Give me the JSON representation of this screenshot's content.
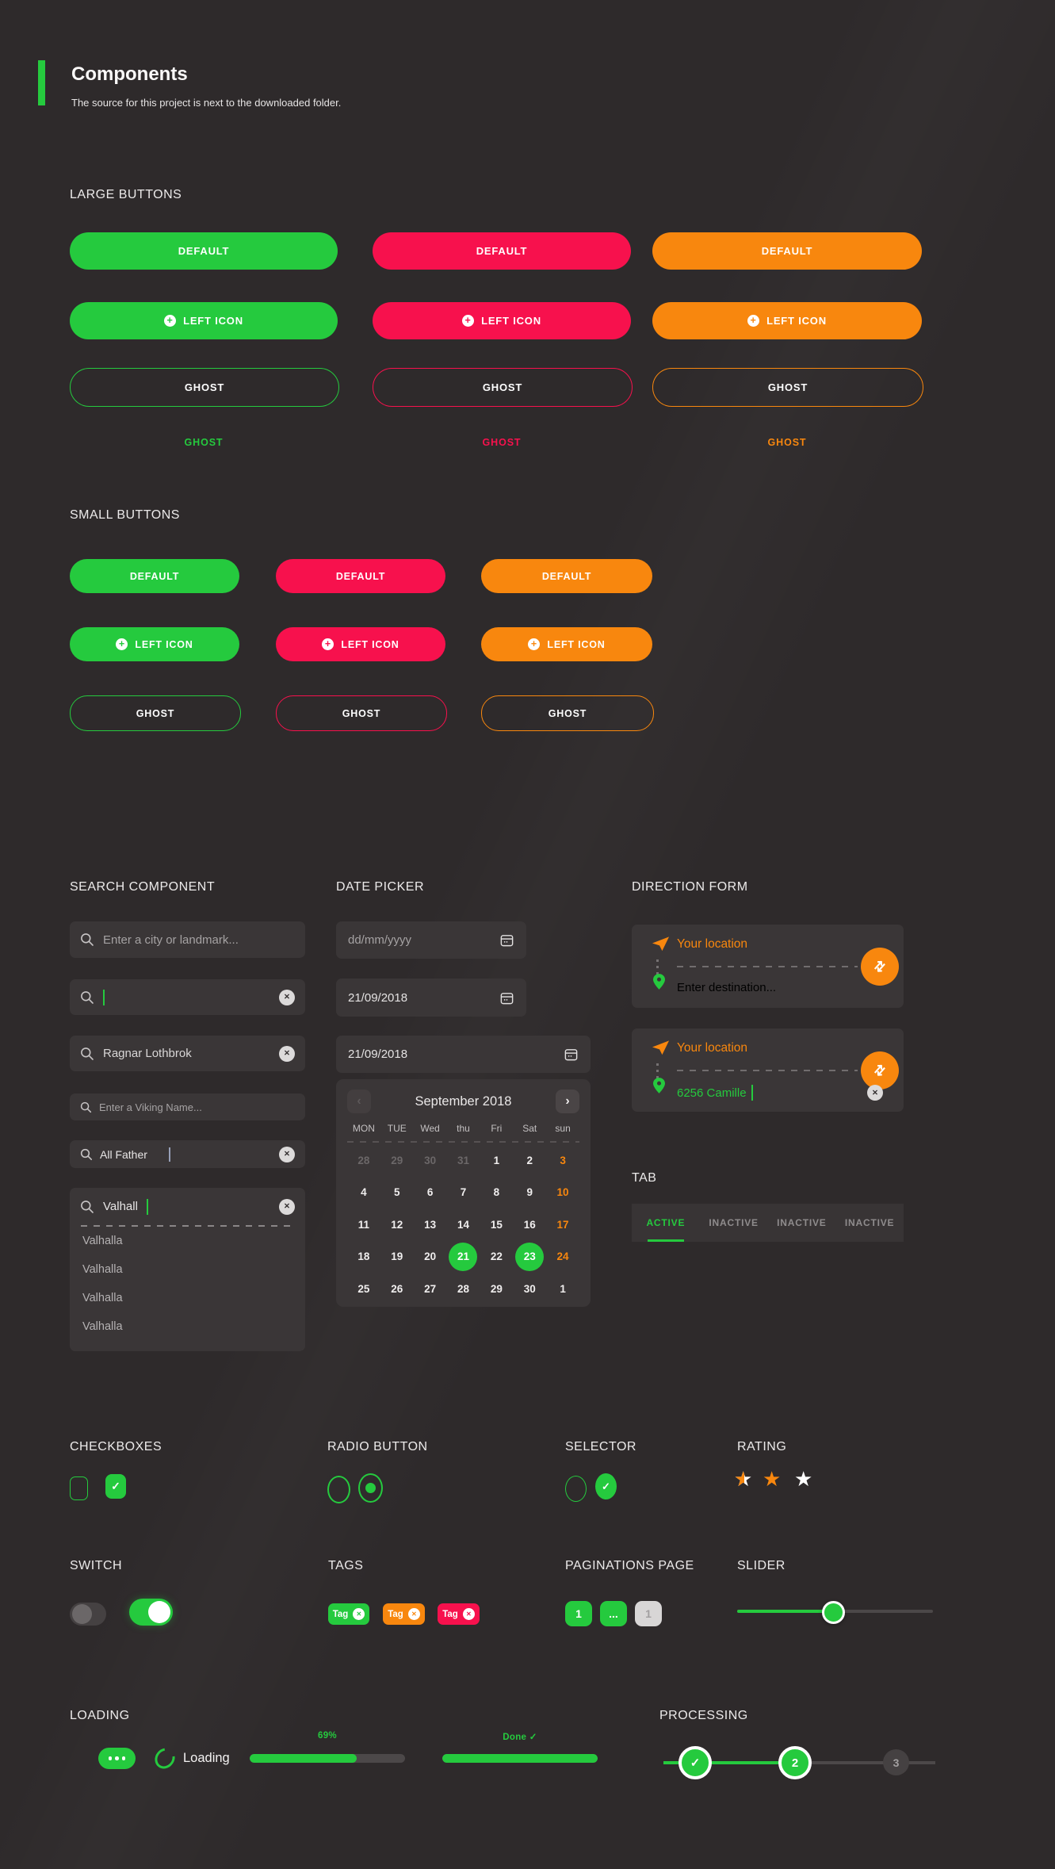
{
  "colors": {
    "green": "#25ca3e",
    "pink": "#f7114d",
    "orange": "#f8870e",
    "background": "#2e2a2b",
    "panel": "#3a3637"
  },
  "header": {
    "title": "Components",
    "subtitle": "The source for this project is next to the downloaded folder."
  },
  "large_buttons": {
    "heading": "LARGE BUTTONS",
    "plus_glyph": "+",
    "variants": [
      {
        "name": "green",
        "default_label": "DEFAULT",
        "left_icon_label": "LEFT ICON",
        "ghost_label": "GHOST",
        "link_label": "GHOST"
      },
      {
        "name": "pink",
        "default_label": "DEFAULT",
        "left_icon_label": "LEFT ICON",
        "ghost_label": "GHOST",
        "link_label": "GHOST"
      },
      {
        "name": "orange",
        "default_label": "DEFAULT",
        "left_icon_label": "LEFT ICON",
        "ghost_label": "GHOST",
        "link_label": "GHOST"
      }
    ]
  },
  "small_buttons": {
    "heading": "SMALL BUTTONS",
    "plus_glyph": "+",
    "variants": [
      {
        "name": "green",
        "default_label": "DEFAULT",
        "left_icon_label": "LEFT ICON",
        "ghost_label": "GHOST"
      },
      {
        "name": "pink",
        "default_label": "DEFAULT",
        "left_icon_label": "LEFT ICON",
        "ghost_label": "GHOST"
      },
      {
        "name": "orange",
        "default_label": "DEFAULT",
        "left_icon_label": "LEFT ICON",
        "ghost_label": "GHOST"
      }
    ]
  },
  "search": {
    "heading": "SEARCH COMPONENT",
    "input1_placeholder": "Enter a city or landmark...",
    "input3_value": "Ragnar Lothbrok",
    "input4_placeholder": "Enter a Viking Name...",
    "input5_value": "All Father",
    "autocomplete_value": "Valhall",
    "suggestions": [
      "Valhalla",
      "Valhalla",
      "Valhalla",
      "Valhalla"
    ],
    "clear_glyph": "✕"
  },
  "date_picker": {
    "heading": "DATE PICKER",
    "input1_placeholder": "dd/mm/yyyy",
    "input2_value": "21/09/2018",
    "input3_value": "21/09/2018",
    "calendar": {
      "month_label": "September 2018",
      "prev_glyph": "‹",
      "next_glyph": "›",
      "day_headers": [
        "MON",
        "TUE",
        "Wed",
        "thu",
        "Fri",
        "Sat",
        "sun"
      ],
      "days": [
        {
          "d": "28",
          "state": "muted"
        },
        {
          "d": "29",
          "state": "muted"
        },
        {
          "d": "30",
          "state": "muted"
        },
        {
          "d": "31",
          "state": "muted"
        },
        {
          "d": "1",
          "state": "normal"
        },
        {
          "d": "2",
          "state": "normal"
        },
        {
          "d": "3",
          "state": "sunday"
        },
        {
          "d": "4",
          "state": "normal"
        },
        {
          "d": "5",
          "state": "normal"
        },
        {
          "d": "6",
          "state": "normal"
        },
        {
          "d": "7",
          "state": "normal"
        },
        {
          "d": "8",
          "state": "normal"
        },
        {
          "d": "9",
          "state": "normal"
        },
        {
          "d": "10",
          "state": "sunday"
        },
        {
          "d": "11",
          "state": "normal"
        },
        {
          "d": "12",
          "state": "normal"
        },
        {
          "d": "13",
          "state": "normal"
        },
        {
          "d": "14",
          "state": "normal"
        },
        {
          "d": "15",
          "state": "normal"
        },
        {
          "d": "16",
          "state": "normal"
        },
        {
          "d": "17",
          "state": "sunday"
        },
        {
          "d": "18",
          "state": "normal"
        },
        {
          "d": "19",
          "state": "normal"
        },
        {
          "d": "20",
          "state": "normal"
        },
        {
          "d": "21",
          "state": "selected"
        },
        {
          "d": "22",
          "state": "normal"
        },
        {
          "d": "23",
          "state": "selected"
        },
        {
          "d": "24",
          "state": "sunday"
        },
        {
          "d": "25",
          "state": "normal"
        },
        {
          "d": "26",
          "state": "normal"
        },
        {
          "d": "27",
          "state": "normal"
        },
        {
          "d": "28",
          "state": "normal"
        },
        {
          "d": "29",
          "state": "normal"
        },
        {
          "d": "30",
          "state": "normal"
        },
        {
          "d": "1",
          "state": "normal"
        }
      ]
    }
  },
  "direction": {
    "heading": "DIRECTION FORM",
    "swap_glyph": "⇄",
    "clear_glyph": "✕",
    "cards": [
      {
        "from_label": "Your location",
        "to_placeholder": "Enter destination..."
      },
      {
        "from_label": "Your location",
        "to_value": "6256 Camille"
      }
    ]
  },
  "tab": {
    "heading": "TAB",
    "items": [
      "ACTIVE",
      "INACTIVE",
      "INACTIVE",
      "INACTIVE"
    ]
  },
  "checkboxes": {
    "heading": "CHECKBOXES",
    "check_glyph": "✓"
  },
  "radio": {
    "heading": "RADIO BUTTON"
  },
  "selector": {
    "heading": "SELECTOR",
    "check_glyph": "✓"
  },
  "rating": {
    "heading": "RATING",
    "star_glyph": "★",
    "states": [
      "half",
      "full",
      "empty"
    ]
  },
  "switch": {
    "heading": "SWITCH",
    "states": [
      "off",
      "on"
    ]
  },
  "tags": {
    "heading": "TAGS",
    "close_glyph": "✕",
    "items": [
      {
        "label": "Tag",
        "color": "green"
      },
      {
        "label": "Tag",
        "color": "orange"
      },
      {
        "label": "Tag",
        "color": "pink"
      }
    ]
  },
  "pagination": {
    "heading": "PAGINATIONS PAGE",
    "items": [
      {
        "label": "1",
        "style": "green"
      },
      {
        "label": "...",
        "style": "green"
      },
      {
        "label": "1",
        "style": "gray"
      }
    ]
  },
  "slider": {
    "heading": "SLIDER",
    "value_pct": 49
  },
  "loading": {
    "heading": "LOADING",
    "spinner_label": "Loading",
    "progress": {
      "label": "69%",
      "pct": 69
    },
    "done": {
      "label": "Done ✓",
      "pct": 100
    }
  },
  "processing": {
    "heading": "PROCESSING",
    "steps": [
      {
        "label": "✓",
        "state": "done"
      },
      {
        "label": "2",
        "state": "active"
      },
      {
        "label": "3",
        "state": "pending"
      }
    ]
  }
}
